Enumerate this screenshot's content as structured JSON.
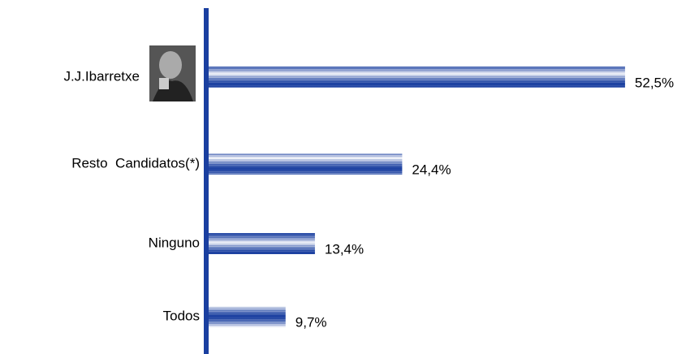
{
  "chart_data": {
    "type": "bar",
    "orientation": "horizontal",
    "categories": [
      "J.J.Ibarretxe",
      "Resto  Candidatos(*)",
      "Ninguno",
      "Todos"
    ],
    "values": [
      52.5,
      24.4,
      13.4,
      9.7
    ],
    "value_labels": [
      "52,5%",
      "24,4%",
      "13,4%",
      "9,7%"
    ],
    "color": "#1a3fa0"
  }
}
